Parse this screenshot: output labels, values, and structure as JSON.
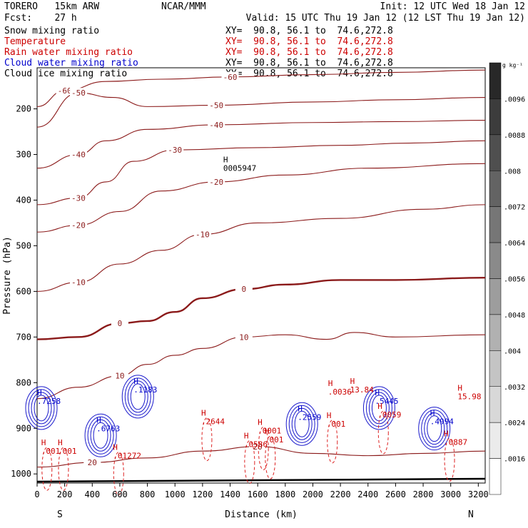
{
  "header": {
    "model": "TORERO   15km ARW",
    "center": "NCAR/MMM",
    "init": "Init: 12 UTC Wed 18 Jan 12",
    "fcst": "Fcst:    27 h",
    "valid": "Valid: 15 UTC Thu 19 Jan 12 (12 LST Thu 19 Jan 12)"
  },
  "fields": [
    {
      "name": "Snow mixing ratio",
      "xy": "XY=  90.8, 56.1 to  74.6,272.8",
      "color": "#000000"
    },
    {
      "name": "Temperature",
      "xy": "XY=  90.8, 56.1 to  74.6,272.8",
      "color": "#cc0000"
    },
    {
      "name": "Rain water mixing ratio",
      "xy": "XY=  90.8, 56.1 to  74.6,272.8",
      "color": "#cc0000"
    },
    {
      "name": "Cloud water mixing ratio",
      "xy": "XY=  90.8, 56.1 to  74.6,272.8",
      "color": "#0000cc"
    },
    {
      "name": "Cloud ice mixing ratio",
      "xy": "XY=  90.8, 56.1 to  74.6,272.8",
      "color": "#000000"
    }
  ],
  "chart_data": {
    "type": "contour",
    "xlabel": "Distance (km)",
    "ylabel": "Pressure (hPa)",
    "x_ticks": [
      0,
      200,
      400,
      600,
      800,
      1000,
      1200,
      1400,
      1600,
      1800,
      2000,
      2200,
      2400,
      2600,
      2800,
      3000,
      3200
    ],
    "y_ticks": [
      200,
      300,
      400,
      500,
      600,
      700,
      800,
      900,
      1000
    ],
    "xlim": [
      0,
      3250
    ],
    "ylim": [
      1020,
      110
    ],
    "left_label": "S",
    "right_label": "N",
    "colorbar": {
      "unit": "g kg⁻¹",
      "ticks": [
        ".0096",
        ".0088",
        ".008",
        ".0072",
        ".0064",
        ".0056",
        ".0048",
        ".004",
        ".0032",
        ".0024",
        ".0016"
      ],
      "range": [
        0.0008,
        0.0104
      ]
    },
    "temperature_isotherms": [
      {
        "label": "-60",
        "points": [
          [
            0,
            195
          ],
          [
            200,
            160
          ],
          [
            500,
            140
          ],
          [
            900,
            135
          ],
          [
            1400,
            130
          ],
          [
            2000,
            125
          ],
          [
            2600,
            120
          ],
          [
            3250,
            115
          ]
        ]
      },
      {
        "label": "-50",
        "points": [
          [
            0,
            240
          ],
          [
            300,
            165
          ],
          [
            550,
            175
          ],
          [
            800,
            195
          ],
          [
            1300,
            192
          ],
          [
            2000,
            185
          ],
          [
            2600,
            180
          ],
          [
            3250,
            175
          ]
        ]
      },
      {
        "label": "-40",
        "points": [
          [
            0,
            330
          ],
          [
            300,
            300
          ],
          [
            500,
            270
          ],
          [
            800,
            245
          ],
          [
            1300,
            235
          ],
          [
            2000,
            230
          ],
          [
            2600,
            228
          ],
          [
            3250,
            225
          ]
        ]
      },
      {
        "label": "-30",
        "points": [
          [
            0,
            410
          ],
          [
            300,
            395
          ],
          [
            500,
            360
          ],
          [
            700,
            315
          ],
          [
            1000,
            290
          ],
          [
            1600,
            285
          ],
          [
            2200,
            280
          ],
          [
            2700,
            275
          ],
          [
            3250,
            270
          ]
        ]
      },
      {
        "label": "-20",
        "points": [
          [
            0,
            470
          ],
          [
            300,
            455
          ],
          [
            600,
            425
          ],
          [
            900,
            380
          ],
          [
            1300,
            360
          ],
          [
            1800,
            345
          ],
          [
            2400,
            330
          ],
          [
            3250,
            320
          ]
        ]
      },
      {
        "label": "-10",
        "points": [
          [
            0,
            600
          ],
          [
            300,
            580
          ],
          [
            600,
            540
          ],
          [
            900,
            510
          ],
          [
            1200,
            475
          ],
          [
            1600,
            450
          ],
          [
            2200,
            440
          ],
          [
            2800,
            420
          ],
          [
            3250,
            410
          ]
        ]
      },
      {
        "label": "0",
        "points": [
          [
            0,
            705
          ],
          [
            300,
            700
          ],
          [
            600,
            670
          ],
          [
            800,
            665
          ],
          [
            1000,
            645
          ],
          [
            1200,
            615
          ],
          [
            1500,
            595
          ],
          [
            1800,
            585
          ],
          [
            2200,
            575
          ],
          [
            2600,
            575
          ],
          [
            3250,
            570
          ]
        ]
      },
      {
        "label": "10",
        "points": [
          [
            0,
            835
          ],
          [
            300,
            810
          ],
          [
            600,
            785
          ],
          [
            800,
            760
          ],
          [
            1000,
            740
          ],
          [
            1200,
            725
          ],
          [
            1500,
            700
          ],
          [
            1800,
            695
          ],
          [
            2100,
            705
          ],
          [
            2300,
            690
          ],
          [
            2600,
            700
          ],
          [
            3250,
            695
          ]
        ]
      },
      {
        "label": "20",
        "points": [
          [
            0,
            985
          ],
          [
            400,
            975
          ],
          [
            800,
            965
          ],
          [
            1200,
            950
          ],
          [
            1600,
            940
          ],
          [
            2000,
            955
          ],
          [
            2400,
            960
          ],
          [
            2800,
            955
          ],
          [
            3250,
            950
          ]
        ]
      }
    ],
    "maxima_labels": [
      {
        "x": 1890,
        "p": 875,
        "text": ".2559",
        "color": "#0000cc"
      },
      {
        "x": 430,
        "p": 900,
        "text": ".6763",
        "color": "#0000cc"
      },
      {
        "x": 700,
        "p": 815,
        "text": ".1183",
        "color": "#0000cc"
      },
      {
        "x": 2450,
        "p": 840,
        "text": ".5445",
        "color": "#0000cc"
      },
      {
        "x": 2850,
        "p": 885,
        "text": ".4994",
        "color": "#0000cc"
      },
      {
        "x": 1190,
        "p": 885,
        "text": ".2644",
        "color": "#cc0000"
      },
      {
        "x": 2270,
        "p": 815,
        "text": "13.84",
        "color": "#cc0000"
      },
      {
        "x": 3050,
        "p": 830,
        "text": "15.98",
        "color": "#cc0000"
      },
      {
        "x": 2100,
        "p": 890,
        "text": ".001",
        "color": "#cc0000"
      },
      {
        "x": 2470,
        "p": 870,
        "text": ".0059",
        "color": "#cc0000"
      },
      {
        "x": 30,
        "p": 950,
        "text": ".001",
        "color": "#cc0000"
      },
      {
        "x": 150,
        "p": 950,
        "text": ".001",
        "color": "#cc0000"
      },
      {
        "x": 550,
        "p": 960,
        "text": ".01272",
        "color": "#cc0000"
      },
      {
        "x": 1650,
        "p": 925,
        "text": ".001",
        "color": "#cc0000"
      },
      {
        "x": 1500,
        "p": 935,
        "text": ".0586",
        "color": "#cc0000"
      },
      {
        "x": 1600,
        "p": 905,
        "text": ".0001",
        "color": "#cc0000"
      },
      {
        "x": 2950,
        "p": 930,
        "text": ".0887",
        "color": "#cc0000"
      },
      {
        "x": 2110,
        "p": 820,
        "text": ".0036",
        "color": "#cc0000"
      },
      {
        "x": 0,
        "p": 840,
        "text": ".7258",
        "color": "#0000cc"
      },
      {
        "x": 1350,
        "p": 330,
        "text": "0005947",
        "color": "#000000"
      }
    ]
  }
}
